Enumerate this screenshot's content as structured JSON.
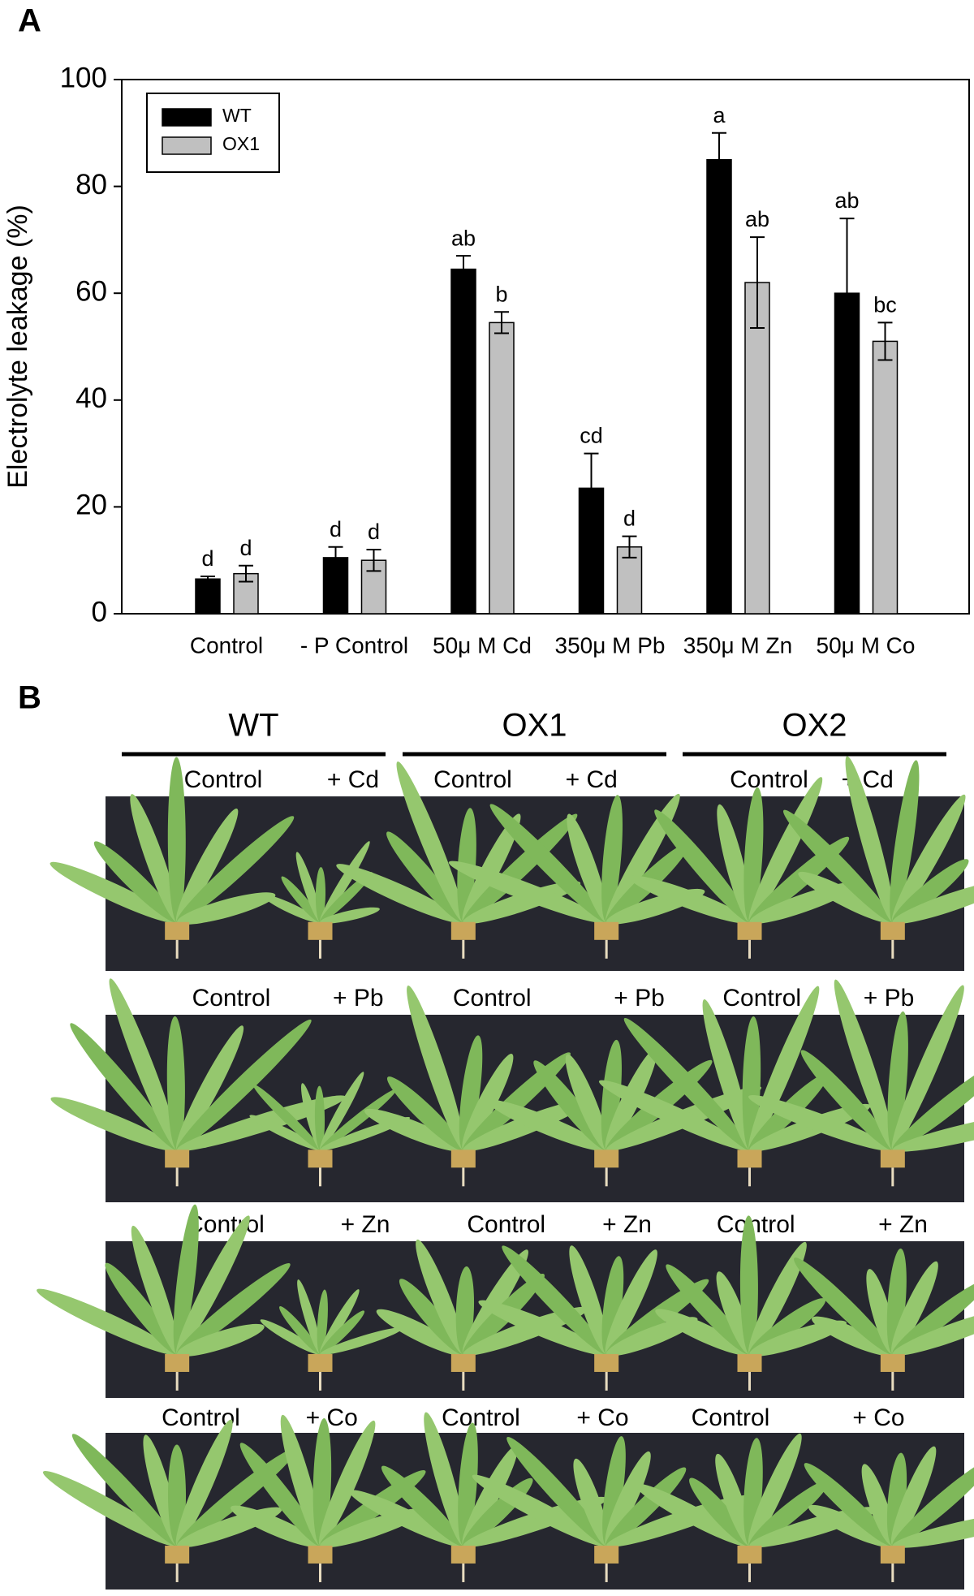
{
  "chart_data": {
    "type": "bar",
    "panel_label": "A",
    "y_label": "Electrolyte leakage (%)",
    "categories": [
      "Control",
      "- P Control",
      "50μ M Cd",
      "350μ M Pb",
      "350μ M Zn",
      "50μ M Co"
    ],
    "series": [
      {
        "name": "WT",
        "color": "#000000",
        "values": [
          6.5,
          10.5,
          64.5,
          23.5,
          85,
          60
        ],
        "errors": [
          0.5,
          2,
          2.5,
          6.5,
          5,
          14
        ],
        "letters": [
          "d",
          "d",
          "ab",
          "cd",
          "a",
          "ab"
        ]
      },
      {
        "name": "OX1",
        "color": "#c0c0c0",
        "values": [
          7.5,
          10,
          54.5,
          12.5,
          62,
          51
        ],
        "errors": [
          1.5,
          2,
          2,
          2,
          8.5,
          3.5
        ],
        "letters": [
          "d",
          "d",
          "b",
          "d",
          "ab",
          "bc"
        ]
      }
    ],
    "ylim": [
      0,
      100
    ],
    "yticks": [
      0,
      20,
      40,
      60,
      80,
      100
    ],
    "grid": false,
    "legend": "upper left"
  },
  "panel_b": {
    "label": "B",
    "genotypes": [
      "WT",
      "OX1",
      "OX2"
    ],
    "rows": [
      [
        "Control",
        "+ Cd",
        "Control",
        "+ Cd",
        "Control",
        "+ Cd"
      ],
      [
        "Control",
        "+ Pb",
        "Control",
        "+ Pb",
        "Control",
        "+ Pb"
      ],
      [
        "Control",
        "+ Zn",
        "Control",
        "+ Zn",
        "Control",
        "+ Zn"
      ],
      [
        "Control",
        "+ Co",
        "Control",
        "+ Co",
        "Control",
        "+ Co"
      ]
    ]
  }
}
